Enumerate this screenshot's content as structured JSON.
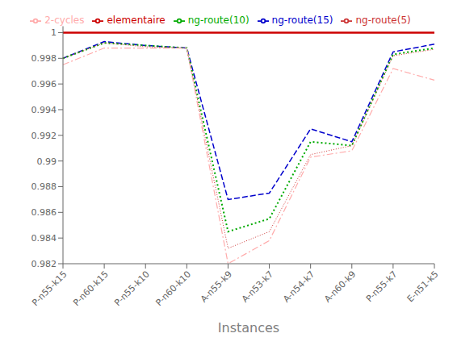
{
  "chart_data": {
    "type": "line",
    "xlabel": "Instances",
    "categories": [
      "P-n55-k15",
      "P-n60-k15",
      "P-n55-k10",
      "P-n60-k10",
      "A-n55-k9",
      "A-n53-k7",
      "A-n54-k7",
      "A-n60-k9",
      "P-n55-k7",
      "E-n51-k5"
    ],
    "series": [
      {
        "name": "elementaire",
        "color": "#cc0000",
        "line_style": "solid",
        "values": [
          1.0,
          1.0,
          1.0,
          1.0,
          1.0,
          1.0,
          1.0,
          1.0,
          1.0,
          1.0
        ]
      },
      {
        "name": "ng-route(15)",
        "color": "#0000cc",
        "line_style": "dashed",
        "values": [
          0.998,
          0.9993,
          0.999,
          0.9988,
          0.987,
          0.9875,
          0.9925,
          0.9915,
          0.9985,
          0.9991
        ]
      },
      {
        "name": "ng-route(10)",
        "color": "#00aa00",
        "line_style": "dotted",
        "values": [
          0.998,
          0.9992,
          0.999,
          0.9988,
          0.9845,
          0.9855,
          0.9915,
          0.9912,
          0.9983,
          0.9988
        ]
      },
      {
        "name": "ng-route(5)",
        "color": "#cc3333",
        "line_style": "dotted",
        "values": [
          0.998,
          0.9992,
          0.9989,
          0.9988,
          0.9832,
          0.9845,
          0.9905,
          0.9912,
          0.9982,
          0.9987
        ]
      },
      {
        "name": "2-cycles",
        "color": "#ffaaaa",
        "line_style": "dashdot",
        "values": [
          0.9975,
          0.9988,
          0.9988,
          0.9988,
          0.982,
          0.9838,
          0.9903,
          0.9908,
          0.9972,
          0.9963
        ]
      }
    ],
    "ylim": [
      0.982,
      1.0005
    ],
    "yticks": [
      0.982,
      0.984,
      0.986,
      0.988,
      0.99,
      0.992,
      0.994,
      0.996,
      0.998,
      1
    ],
    "grid": false,
    "legend": "top"
  }
}
